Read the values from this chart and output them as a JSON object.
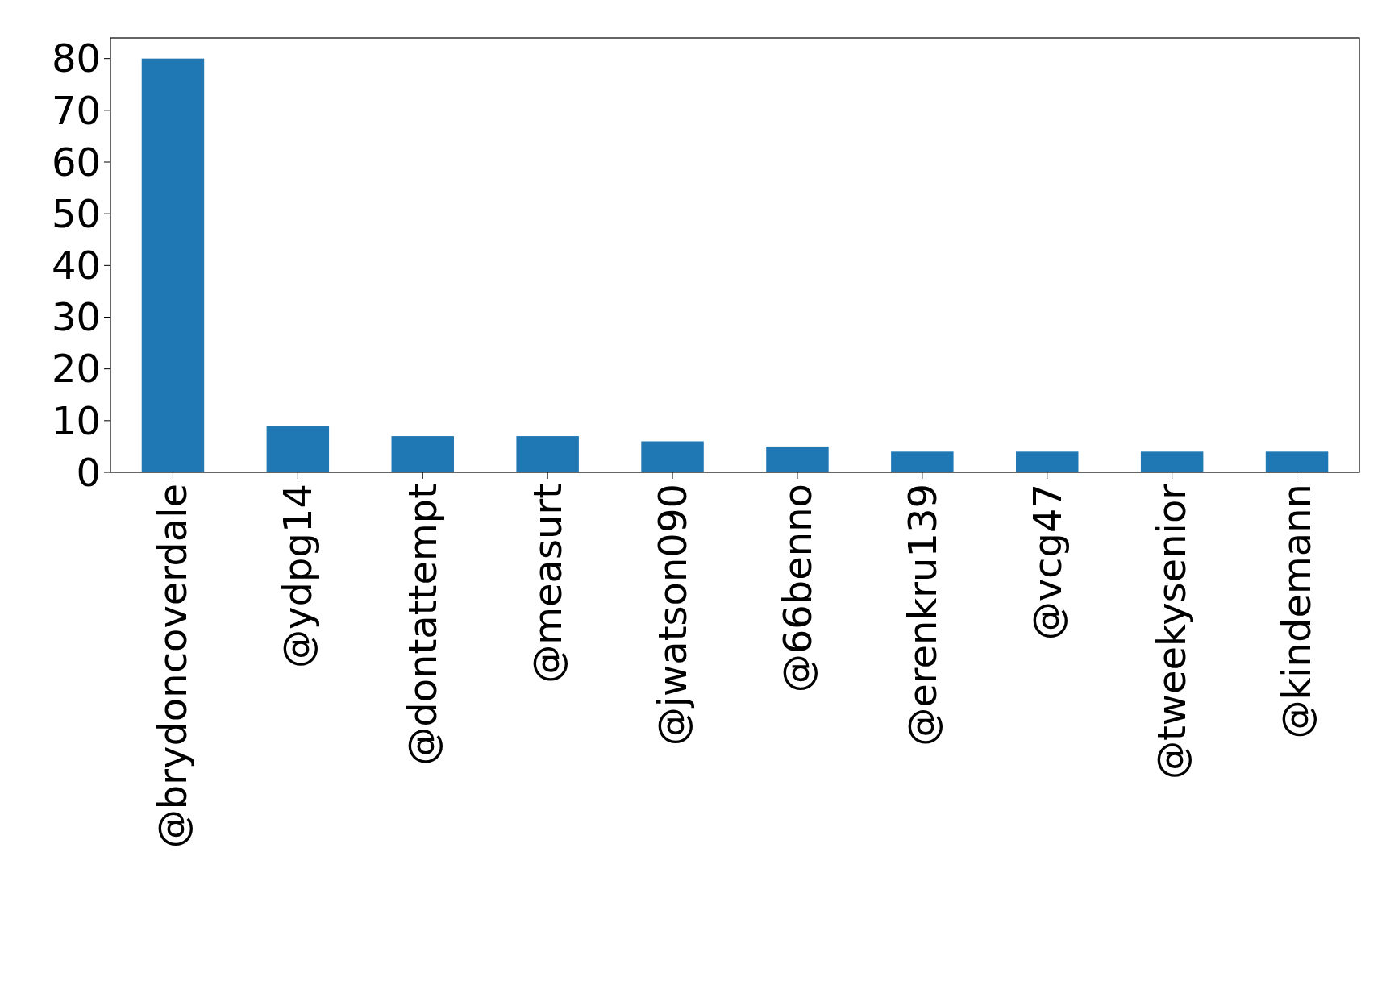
{
  "chart_data": {
    "type": "bar",
    "categories": [
      "@brydoncoverdale",
      "@ydpg14",
      "@dontattempt",
      "@measurt",
      "@jwatson090",
      "@66benno",
      "@erenkru139",
      "@vcg47",
      "@tweekysenior",
      "@kindemann"
    ],
    "values": [
      80,
      9,
      7,
      7,
      6,
      5,
      4,
      4,
      4,
      4
    ],
    "color": "#1f77b4",
    "ylim": [
      0,
      84
    ],
    "yticks": [
      0,
      10,
      20,
      30,
      40,
      50,
      60,
      70,
      80
    ]
  }
}
